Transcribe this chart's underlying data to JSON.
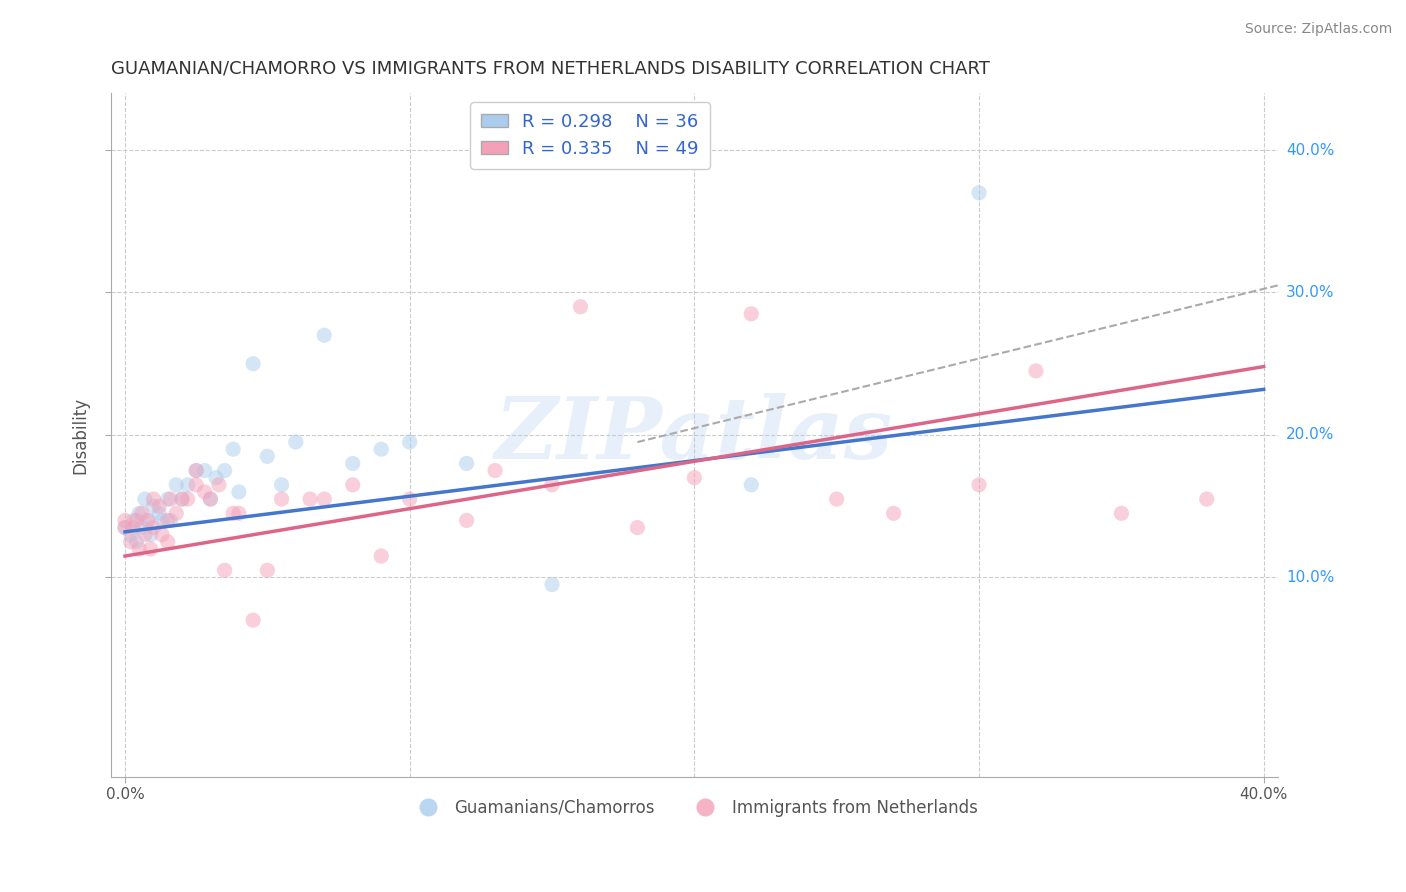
{
  "title": "GUAMANIAN/CHAMORRO VS IMMIGRANTS FROM NETHERLANDS DISABILITY CORRELATION CHART",
  "source_text": "Source: ZipAtlas.com",
  "xlabel": "",
  "ylabel": "Disability",
  "xlim": [
    -0.005,
    0.405
  ],
  "ylim": [
    -0.04,
    0.44
  ],
  "legend_r1": "R = 0.298",
  "legend_n1": "N = 36",
  "legend_r2": "R = 0.335",
  "legend_n2": "N = 49",
  "color_blue": "#aaccee",
  "color_pink": "#f4a0b8",
  "color_blue_line": "#4477cc",
  "color_pink_line": "#dd6688",
  "color_dashed_line": "#aaaaaa",
  "background_color": "#ffffff",
  "grid_color": "#cccccc",
  "blue_points_x": [
    0.0,
    0.002,
    0.003,
    0.004,
    0.005,
    0.006,
    0.007,
    0.008,
    0.009,
    0.01,
    0.012,
    0.013,
    0.015,
    0.016,
    0.018,
    0.02,
    0.022,
    0.025,
    0.028,
    0.03,
    0.032,
    0.035,
    0.038,
    0.04,
    0.045,
    0.05,
    0.055,
    0.06,
    0.07,
    0.08,
    0.09,
    0.1,
    0.12,
    0.15,
    0.22,
    0.3
  ],
  "blue_points_y": [
    0.135,
    0.13,
    0.14,
    0.125,
    0.145,
    0.135,
    0.155,
    0.14,
    0.13,
    0.15,
    0.145,
    0.14,
    0.155,
    0.14,
    0.165,
    0.155,
    0.165,
    0.175,
    0.175,
    0.155,
    0.17,
    0.175,
    0.19,
    0.16,
    0.25,
    0.185,
    0.165,
    0.195,
    0.27,
    0.18,
    0.19,
    0.195,
    0.18,
    0.095,
    0.165,
    0.37
  ],
  "pink_points_x": [
    0.0,
    0.0,
    0.002,
    0.003,
    0.004,
    0.005,
    0.006,
    0.007,
    0.008,
    0.009,
    0.01,
    0.01,
    0.012,
    0.013,
    0.015,
    0.015,
    0.016,
    0.018,
    0.02,
    0.022,
    0.025,
    0.025,
    0.028,
    0.03,
    0.033,
    0.035,
    0.038,
    0.04,
    0.045,
    0.05,
    0.055,
    0.065,
    0.07,
    0.08,
    0.09,
    0.1,
    0.12,
    0.13,
    0.15,
    0.16,
    0.18,
    0.2,
    0.22,
    0.25,
    0.27,
    0.3,
    0.32,
    0.35,
    0.38
  ],
  "pink_points_y": [
    0.135,
    0.14,
    0.125,
    0.135,
    0.14,
    0.12,
    0.145,
    0.13,
    0.14,
    0.12,
    0.155,
    0.135,
    0.15,
    0.13,
    0.14,
    0.125,
    0.155,
    0.145,
    0.155,
    0.155,
    0.175,
    0.165,
    0.16,
    0.155,
    0.165,
    0.105,
    0.145,
    0.145,
    0.07,
    0.105,
    0.155,
    0.155,
    0.155,
    0.165,
    0.115,
    0.155,
    0.14,
    0.175,
    0.165,
    0.29,
    0.135,
    0.17,
    0.285,
    0.155,
    0.145,
    0.165,
    0.245,
    0.145,
    0.155
  ],
  "blue_line_x": [
    0.0,
    0.4
  ],
  "blue_line_y": [
    0.132,
    0.232
  ],
  "pink_line_x": [
    0.0,
    0.4
  ],
  "pink_line_y": [
    0.115,
    0.248
  ],
  "dashed_line_x": [
    0.18,
    0.405
  ],
  "dashed_line_y": [
    0.195,
    0.305
  ],
  "marker_size": 120,
  "alpha_scatter": 0.5,
  "watermark_text": "ZIPatlas",
  "label1": "Guamanians/Chamorros",
  "label2": "Immigrants from Netherlands"
}
